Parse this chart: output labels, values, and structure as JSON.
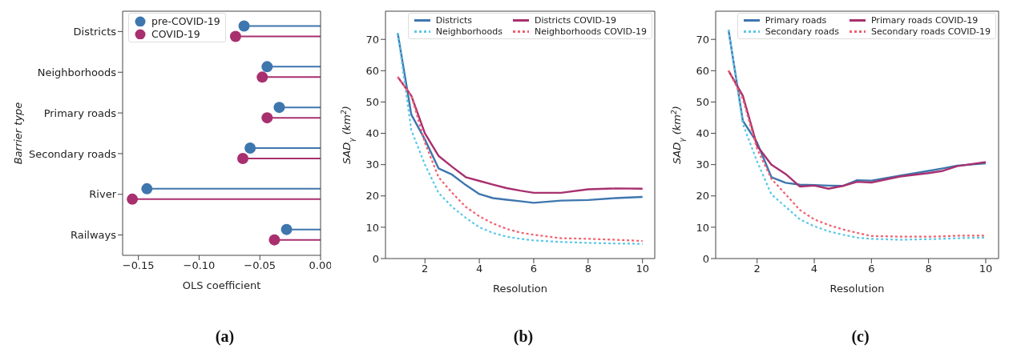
{
  "chart_data": [
    {
      "type": "lollipop",
      "orientation": "horizontal",
      "ylabel": "Barrier type",
      "xlabel": "OLS coefficient",
      "categories": [
        "Districts",
        "Neighborhoods",
        "Primary roads",
        "Secondary roads",
        "River",
        "Railways"
      ],
      "series": [
        {
          "name": "pre-COVID-19",
          "color": "#3e76ae",
          "values": [
            -0.063,
            -0.044,
            -0.034,
            -0.058,
            -0.143,
            -0.028
          ]
        },
        {
          "name": "COVID-19",
          "color": "#a8306f",
          "values": [
            -0.07,
            -0.048,
            -0.044,
            -0.064,
            -0.155,
            -0.038
          ]
        }
      ],
      "xlim": [
        -0.163,
        0
      ],
      "xticks": [
        {
          "value": -0.15,
          "label": "−0.15"
        },
        {
          "value": -0.1,
          "label": "−0.10"
        },
        {
          "value": -0.05,
          "label": "−0.05"
        },
        {
          "value": 0,
          "label": "0.00"
        }
      ],
      "legend": "top left",
      "marker": "circle",
      "annotations": [
        "(a)"
      ]
    },
    {
      "type": "line",
      "xlabel": "Resolution",
      "ylabel": "SAD$_{γ}$  (km$^{2}$)",
      "x": [
        1,
        1.5,
        2,
        2.5,
        3,
        3.5,
        4,
        4.5,
        5,
        5.5,
        6,
        7,
        8,
        9,
        10
      ],
      "series": [
        {
          "name": "Districts",
          "color": "#3e76ae",
          "line_style": "solid",
          "values": [
            72,
            46,
            38,
            28.8,
            26.8,
            23.5,
            20.6,
            19.3,
            18.8,
            18.3,
            17.8,
            18.5,
            18.7,
            19.3,
            19.7
          ]
        },
        {
          "name": "Neighborhoods",
          "color": "#5bc8e8",
          "line_style": "dotted",
          "values": [
            72,
            41,
            30,
            21,
            16.5,
            13,
            10,
            8.2,
            7,
            6.3,
            5.8,
            5.3,
            5,
            4.8,
            4.7
          ]
        },
        {
          "name": "Districts COVID-19",
          "color": "#a8306f",
          "line_style": "solid",
          "values": [
            58,
            52,
            40,
            32.8,
            29.3,
            26,
            24.8,
            23.6,
            22.5,
            21.7,
            21,
            21,
            22.1,
            22.4,
            22.3
          ]
        },
        {
          "name": "Neighborhoods COVID-19",
          "color": "#f0606e",
          "line_style": "dotted",
          "values": [
            58,
            52,
            37,
            26,
            21,
            16.5,
            13.5,
            11.2,
            9.5,
            8.3,
            7.6,
            6.5,
            6.3,
            6,
            5.6
          ]
        }
      ],
      "xlim": [
        0.55,
        10.45
      ],
      "xticks": [
        2,
        4,
        6,
        8,
        10
      ],
      "ylim": [
        0,
        79
      ],
      "yticks": [
        0,
        10,
        20,
        30,
        40,
        50,
        60,
        70
      ],
      "legend": "top right",
      "marker": "none",
      "annotations": [
        "(b)"
      ]
    },
    {
      "type": "line",
      "xlabel": "Resolution",
      "ylabel": "SAD$_{γ}$  (km$^{2}$)",
      "x": [
        1,
        1.5,
        2,
        2.5,
        3,
        3.5,
        4,
        4.5,
        5,
        5.5,
        6,
        7,
        8,
        8.5,
        9,
        10
      ],
      "series": [
        {
          "name": "Primary roads",
          "color": "#3e76ae",
          "line_style": "solid",
          "values": [
            73,
            44,
            37,
            26,
            24.2,
            23.6,
            23.5,
            23.3,
            23.2,
            25,
            24.9,
            26.5,
            28,
            28.8,
            29.7,
            30.4
          ]
        },
        {
          "name": "Secondary roads",
          "color": "#5bc8e8",
          "line_style": "dotted",
          "values": [
            73,
            43,
            31,
            20.5,
            16.5,
            12.5,
            10.3,
            8.7,
            7.6,
            6.7,
            6.3,
            6,
            6.2,
            6.3,
            6.5,
            6.7
          ]
        },
        {
          "name": "Primary roads COVID-19",
          "color": "#a8306f",
          "line_style": "solid",
          "values": [
            60,
            52,
            36,
            30,
            27,
            23,
            23.3,
            22.3,
            23.2,
            24.5,
            24.3,
            26.2,
            27.3,
            28,
            29.5,
            30.8
          ]
        },
        {
          "name": "Secondary roads COVID-19",
          "color": "#f0606e",
          "line_style": "dotted",
          "values": [
            60,
            51,
            35,
            25.5,
            20.5,
            15.5,
            12.5,
            10.7,
            9.3,
            8.2,
            7.2,
            7,
            7,
            7.1,
            7.3,
            7.3
          ]
        }
      ],
      "xlim": [
        0.55,
        10.45
      ],
      "xticks": [
        2,
        4,
        6,
        8,
        10
      ],
      "ylim": [
        0,
        79
      ],
      "yticks": [
        0,
        10,
        20,
        30,
        40,
        50,
        60,
        70
      ],
      "legend": "top right",
      "marker": "none",
      "annotations": [
        "(c)"
      ]
    }
  ]
}
